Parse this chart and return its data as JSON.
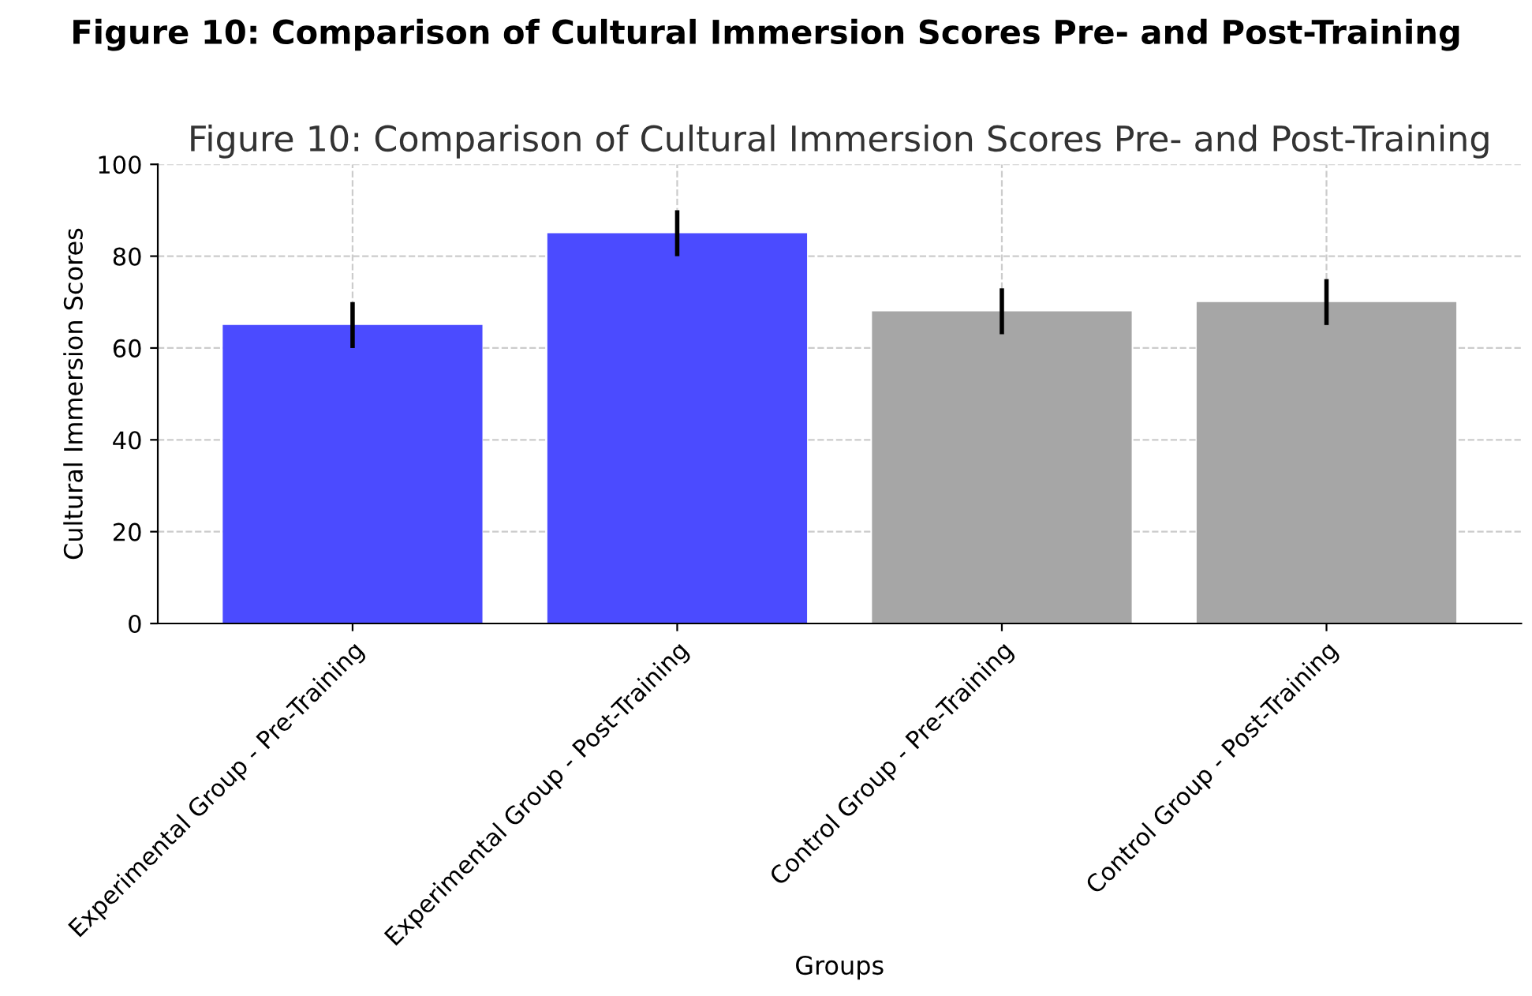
{
  "chart_data": {
    "type": "bar",
    "title": "Figure 10: Comparison of Cultural Immersion Scores Pre- and Post-Training",
    "subtitle": "Figure 10: Comparison of Cultural Immersion Scores Pre- and Post-Training",
    "xlabel": "Groups",
    "ylabel": "Cultural Immersion Scores",
    "categories": [
      "Experimental Group - Pre-Training",
      "Experimental Group - Post-Training",
      "Control Group - Pre-Training",
      "Control Group - Post-Training"
    ],
    "values": [
      65,
      85,
      68,
      70
    ],
    "errors": [
      5,
      5,
      5,
      5
    ],
    "colors": [
      "#4b4bff",
      "#4b4bff",
      "#a6a6a6",
      "#a6a6a6"
    ],
    "ylim": [
      0,
      100
    ],
    "yticks": [
      0,
      20,
      40,
      60,
      80,
      100
    ],
    "grid": true
  }
}
